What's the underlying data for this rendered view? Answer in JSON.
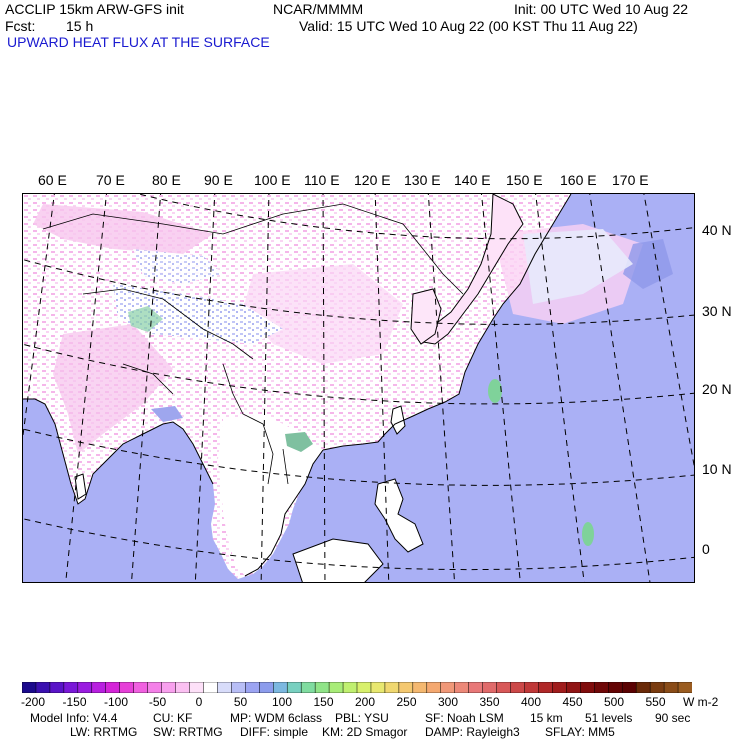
{
  "header": {
    "model": "ACCLIP 15km ARW-GFS init",
    "center": "NCAR/MMMM",
    "init": "Init: 00 UTC Wed 10 Aug 22",
    "fcst_label": "Fcst:",
    "fcst_value": "15 h",
    "valid": "Valid: 15 UTC Wed 10 Aug 22 (00 KST Thu 11 Aug 22)",
    "field": "UPWARD HEAT FLUX AT THE SURFACE"
  },
  "map": {
    "lon_labels": [
      "60 E",
      "70 E",
      "80 E",
      "90 E",
      "100 E",
      "110 E",
      "120 E",
      "130 E",
      "140 E",
      "150 E",
      "160 E",
      "170 E"
    ],
    "lat_labels": [
      "40 N",
      "30 N",
      "20 N",
      "10 N",
      "0"
    ],
    "colors": {
      "ocean": "#aab0f5",
      "land": "#ffffff",
      "pink": "#f7c8ef",
      "green": "#7fd29a"
    }
  },
  "colorbar": {
    "ticks": [
      "-200",
      "-150",
      "-100",
      "-50",
      "0",
      "50",
      "100",
      "150",
      "200",
      "250",
      "300",
      "350",
      "400",
      "450",
      "500",
      "550"
    ],
    "units": "W m-2",
    "colors": [
      "#1b0a8c",
      "#3a10b0",
      "#5a14c8",
      "#7a18d8",
      "#9a1ce0",
      "#b820e0",
      "#d424d8",
      "#e640d8",
      "#f060e0",
      "#f480e8",
      "#f8a0ee",
      "#fbc0f2",
      "#fde0f8",
      "#ffffff",
      "#d8dcfa",
      "#b8bef6",
      "#9ca4f2",
      "#8c9cec",
      "#7cb8e0",
      "#78d0c0",
      "#80dca0",
      "#90e488",
      "#a8ec78",
      "#c0f070",
      "#d8f06c",
      "#e8e870",
      "#f0d870",
      "#f4c870",
      "#f4b870",
      "#f4a870",
      "#f09878",
      "#ec8878",
      "#e87878",
      "#e06a6a",
      "#d85858",
      "#cc4848",
      "#c03838",
      "#b02828",
      "#a01c1c",
      "#901414",
      "#800c0c",
      "#700808",
      "#640404",
      "#5a0202",
      "#6a2a08",
      "#7a3c10",
      "#8a4c18",
      "#9a5c20"
    ]
  },
  "footer": {
    "line1": [
      "Model Info: V4.4",
      "CU: KF",
      "MP: WDM 6class",
      "PBL: YSU",
      "SF: Noah LSM",
      "15 km",
      "51 levels",
      "90 sec"
    ],
    "line2": [
      "LW: RRTMG",
      "SW: RRTMG",
      "DIFF: simple",
      "KM: 2D Smagor",
      "DAMP: Rayleigh3",
      "SFLAY: MM5"
    ]
  }
}
